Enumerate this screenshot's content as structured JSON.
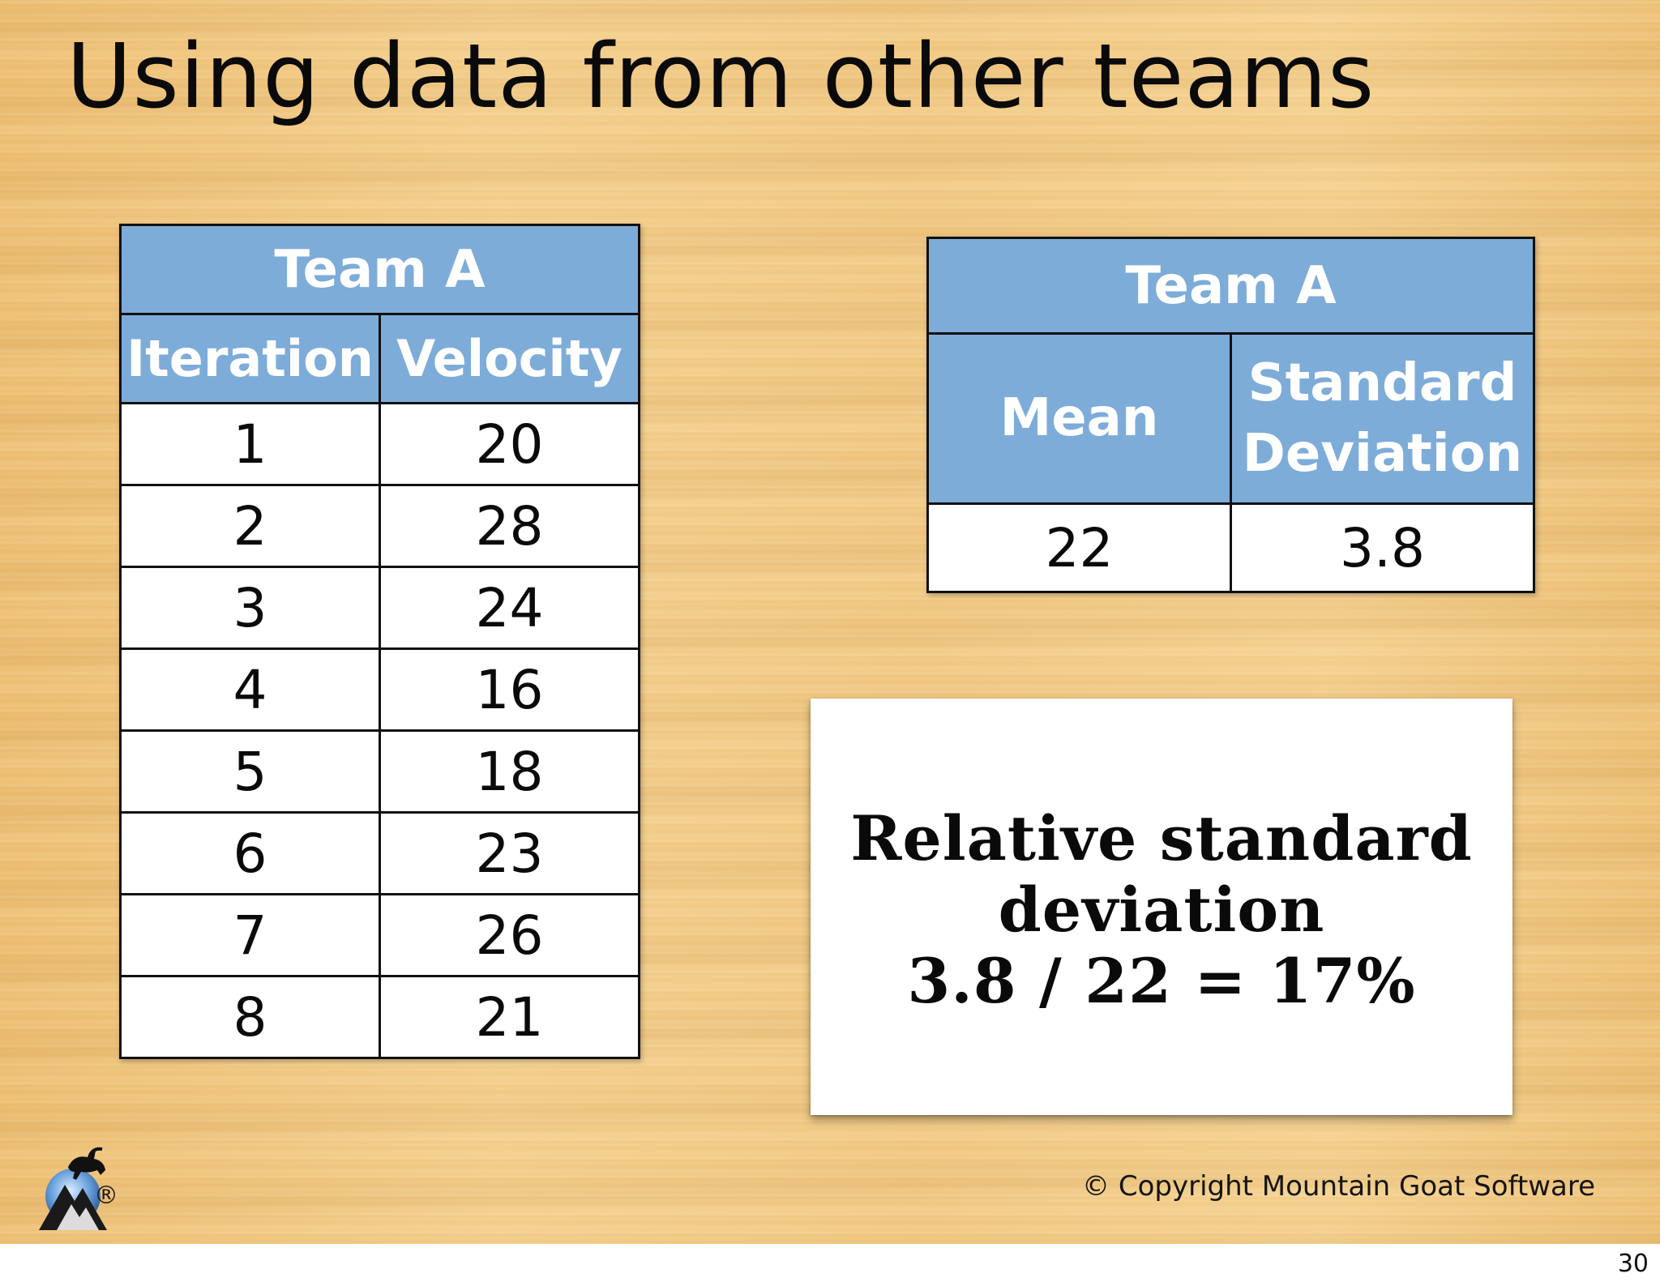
{
  "slide": {
    "title": "Using data from other teams",
    "velocity_table": {
      "team": "Team A",
      "headers": [
        "Iteration",
        "Velocity"
      ],
      "rows": [
        [
          "1",
          "20"
        ],
        [
          "2",
          "28"
        ],
        [
          "3",
          "24"
        ],
        [
          "4",
          "16"
        ],
        [
          "5",
          "18"
        ],
        [
          "6",
          "23"
        ],
        [
          "7",
          "26"
        ],
        [
          "8",
          "21"
        ]
      ]
    },
    "summary_table": {
      "team": "Team A",
      "headers": [
        "Mean",
        "Standard\nDeviation"
      ],
      "header_mean": "Mean",
      "header_sd_line1": "Standard",
      "header_sd_line2": "Deviation",
      "values": [
        "22",
        "3.8"
      ]
    },
    "rsd_card": {
      "line1": "Relative standard",
      "line2": "deviation",
      "line3": "3.8 / 22 = 17%"
    },
    "logo": {
      "icon": "mountain-goat-logo-icon",
      "registered_mark": "®"
    },
    "copyright": "© Copyright Mountain Goat Software",
    "page_number": "30"
  },
  "colors": {
    "header_blue": "#7dacd9",
    "wood_background": "#f0c77e",
    "cell_white": "#ffffff"
  }
}
